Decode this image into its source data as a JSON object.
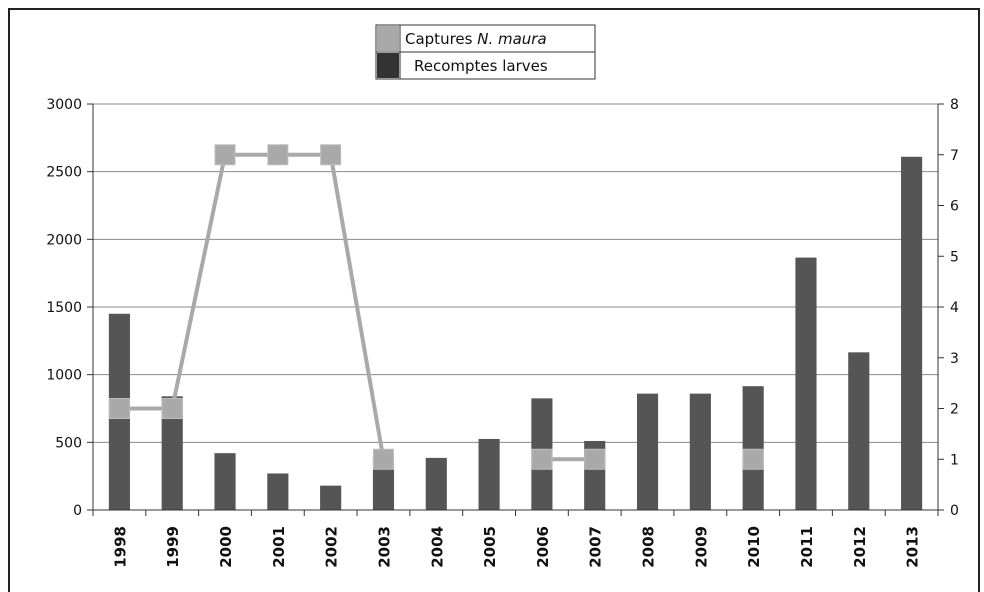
{
  "chart_data": {
    "type": "bar",
    "categories": [
      "1998",
      "1999",
      "2000",
      "2001",
      "2002",
      "2003",
      "2004",
      "2005",
      "2006",
      "2007",
      "2008",
      "2009",
      "2010",
      "2011",
      "2012",
      "2013"
    ],
    "series": [
      {
        "name": "Recomptes larves",
        "kind": "bar",
        "axis": "left",
        "color": "#555555",
        "values": [
          1450,
          840,
          420,
          270,
          180,
          390,
          385,
          525,
          825,
          510,
          860,
          860,
          915,
          1865,
          1165,
          2610
        ]
      },
      {
        "name": "Captures N. maura",
        "name_prefix": "Captures ",
        "name_italic": "N. maura",
        "kind": "line",
        "axis": "right",
        "color": "#a9a9a9",
        "values": [
          2,
          2,
          7,
          7,
          7,
          1,
          null,
          null,
          1,
          1,
          null,
          null,
          1,
          null,
          null,
          null
        ]
      }
    ],
    "y_left": {
      "lim": [
        0,
        3000
      ],
      "ticks": [
        0,
        500,
        1000,
        1500,
        2000,
        2500,
        3000
      ]
    },
    "y_right": {
      "lim": [
        0,
        8
      ],
      "ticks": [
        0,
        1,
        2,
        3,
        4,
        5,
        6,
        7,
        8
      ]
    },
    "grid": true,
    "legend_position": "top-center",
    "title": "",
    "xlabel": "",
    "ylabel": ""
  }
}
